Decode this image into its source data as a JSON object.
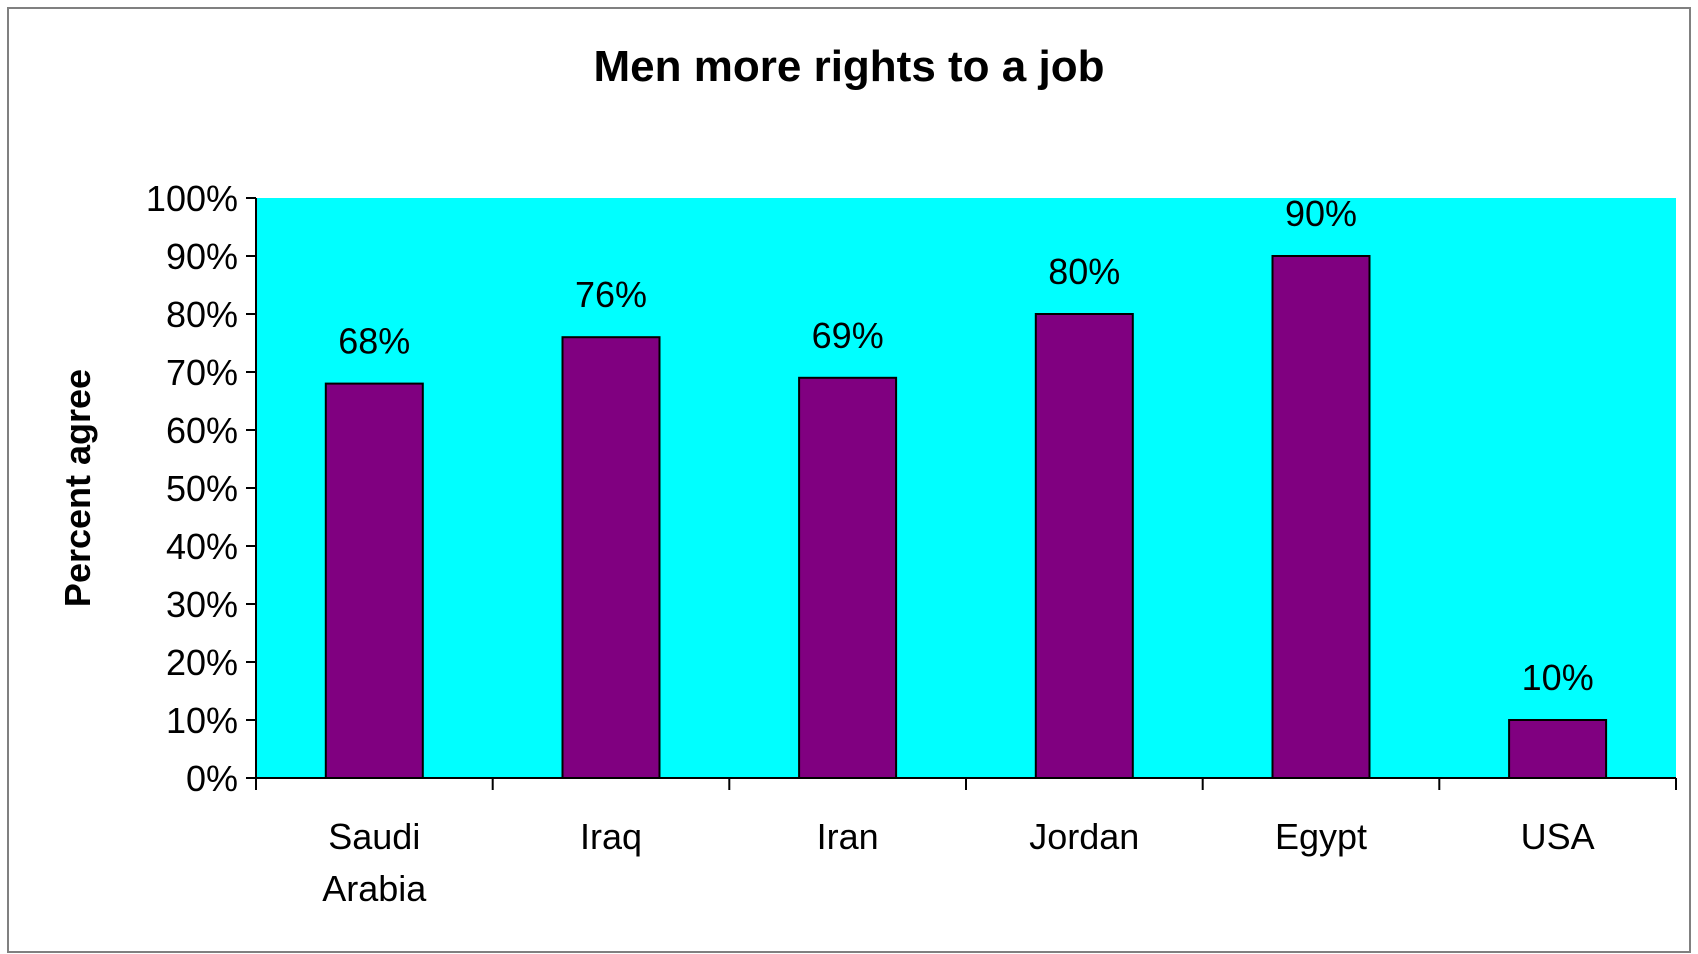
{
  "chart_data": {
    "type": "bar",
    "title": "Men more rights to a job",
    "ylabel": "Percent agree",
    "xlabel": "",
    "categories": [
      [
        "Saudi",
        "Arabia"
      ],
      [
        "Iraq"
      ],
      [
        "Iran"
      ],
      [
        "Jordan"
      ],
      [
        "Egypt"
      ],
      [
        "USA"
      ]
    ],
    "values": [
      68,
      76,
      69,
      80,
      90,
      10
    ],
    "data_labels": [
      "68%",
      "76%",
      "69%",
      "80%",
      "90%",
      "10%"
    ],
    "yticks": [
      "0%",
      "10%",
      "20%",
      "30%",
      "40%",
      "50%",
      "60%",
      "70%",
      "80%",
      "90%",
      "100%"
    ],
    "ylim": [
      0,
      100
    ],
    "grid": false,
    "legend": "none",
    "colors": {
      "plot_background": "#00FFFF",
      "bar_fill": "#800080",
      "bar_stroke": "#000000",
      "axis": "#000000",
      "frame": "#808080"
    }
  }
}
